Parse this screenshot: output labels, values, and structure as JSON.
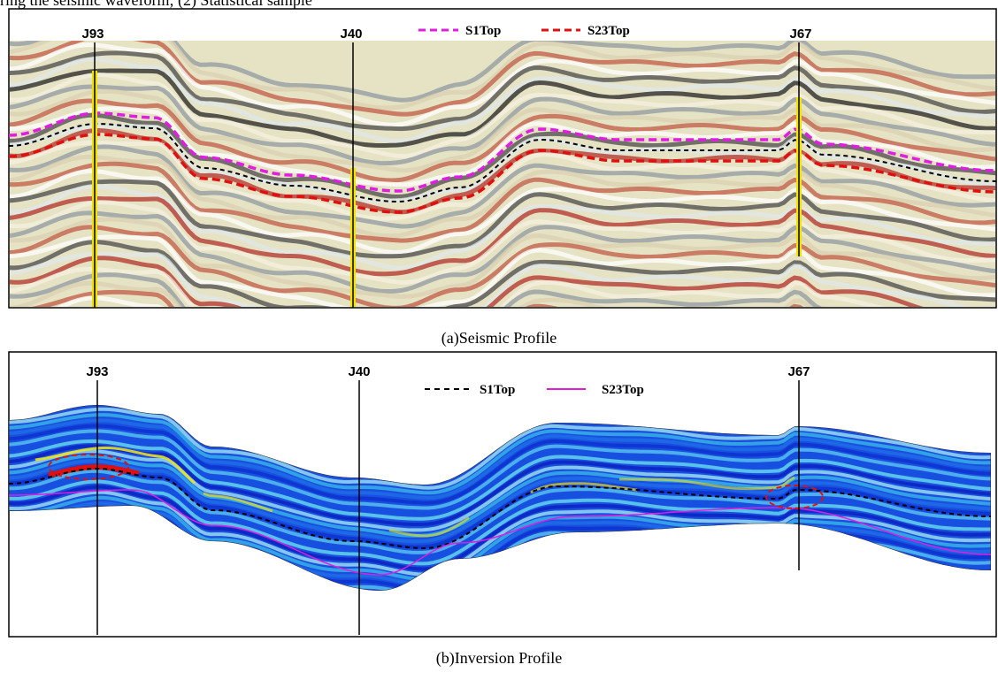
{
  "header_text": "ring the seismic waveform; (2) Statistical sample",
  "panels": [
    {
      "wells": [
        "J93",
        "J40",
        "J67"
      ],
      "legend": [
        "S1Top",
        "S23Top"
      ],
      "caption": "(a)Seismic Profile"
    },
    {
      "wells": [
        "J93",
        "J40",
        "J67"
      ],
      "legend": [
        "S1Top",
        "S23Top"
      ],
      "caption": "(b)Inversion Profile"
    }
  ]
}
